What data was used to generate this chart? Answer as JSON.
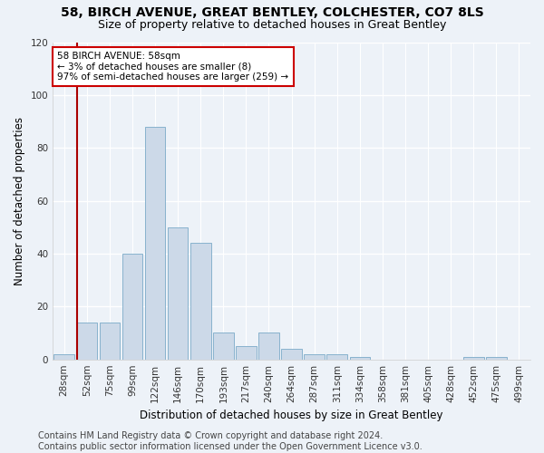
{
  "title": "58, BIRCH AVENUE, GREAT BENTLEY, COLCHESTER, CO7 8LS",
  "subtitle": "Size of property relative to detached houses in Great Bentley",
  "xlabel": "Distribution of detached houses by size in Great Bentley",
  "ylabel": "Number of detached properties",
  "bin_labels": [
    "28sqm",
    "52sqm",
    "75sqm",
    "99sqm",
    "122sqm",
    "146sqm",
    "170sqm",
    "193sqm",
    "217sqm",
    "240sqm",
    "264sqm",
    "287sqm",
    "311sqm",
    "334sqm",
    "358sqm",
    "381sqm",
    "405sqm",
    "428sqm",
    "452sqm",
    "475sqm",
    "499sqm"
  ],
  "values": [
    2,
    14,
    14,
    40,
    88,
    50,
    44,
    10,
    5,
    10,
    4,
    2,
    2,
    1,
    0,
    0,
    0,
    0,
    1,
    1,
    0
  ],
  "bar_color": "#ccd9e8",
  "bar_edge_color": "#7aaac8",
  "vline_color": "#aa0000",
  "vline_x": 0.575,
  "annotation_text": "58 BIRCH AVENUE: 58sqm\n← 3% of detached houses are smaller (8)\n97% of semi-detached houses are larger (259) →",
  "annotation_box_color": "#ffffff",
  "annotation_box_edge": "#cc0000",
  "ylim": [
    0,
    120
  ],
  "yticks": [
    0,
    20,
    40,
    60,
    80,
    100,
    120
  ],
  "background_color": "#edf2f8",
  "grid_color": "#ffffff",
  "footer": "Contains HM Land Registry data © Crown copyright and database right 2024.\nContains public sector information licensed under the Open Government Licence v3.0.",
  "title_fontsize": 10,
  "subtitle_fontsize": 9,
  "xlabel_fontsize": 8.5,
  "ylabel_fontsize": 8.5,
  "tick_fontsize": 7.5,
  "footer_fontsize": 7
}
